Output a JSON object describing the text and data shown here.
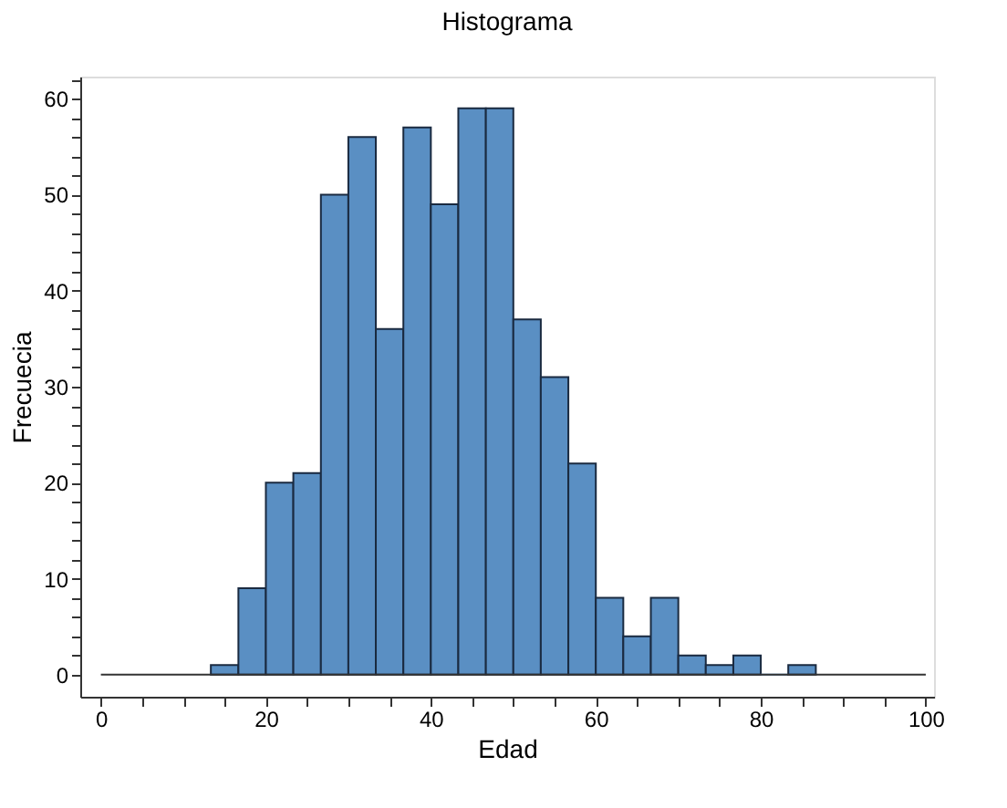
{
  "chart_data": {
    "type": "histogram",
    "title": "Histograma",
    "xlabel": "Edad",
    "ylabel": "Frecuecia",
    "bins": [
      13.33,
      16.67,
      20,
      23.33,
      26.67,
      30,
      33.33,
      36.67,
      40,
      43.33,
      46.67,
      50,
      53.33,
      56.67,
      60,
      63.33,
      66.67,
      70,
      73.33,
      76.67,
      80,
      83.33,
      86.67
    ],
    "values": [
      1,
      9,
      20,
      21,
      50,
      56,
      36,
      57,
      49,
      59,
      59,
      37,
      31,
      22,
      8,
      4,
      8,
      2,
      1,
      2,
      0,
      1
    ],
    "color": "#5a8fc3",
    "xlim": [
      -2.5,
      101
    ],
    "ylim": [
      -2.3,
      62.3
    ],
    "xticks": [
      0,
      {
        "value": 5,
        "label": null
      },
      {
        "value": 10,
        "label": null
      },
      {
        "value": 15,
        "label": null
      },
      20,
      {
        "value": 25,
        "label": null
      },
      {
        "value": 30,
        "label": null
      },
      {
        "value": 35,
        "label": null
      },
      40,
      {
        "value": 45,
        "label": null
      },
      {
        "value": 50,
        "label": null
      },
      {
        "value": 55,
        "label": null
      },
      60,
      {
        "value": 65,
        "label": null
      },
      {
        "value": 70,
        "label": null
      },
      {
        "value": 75,
        "label": null
      },
      80,
      {
        "value": 85,
        "label": null
      },
      {
        "value": 90,
        "label": null
      },
      {
        "value": 95,
        "label": null
      },
      100
    ],
    "yticks": [
      0,
      {
        "value": 2,
        "label": null
      },
      {
        "value": 4,
        "label": null
      },
      {
        "value": 6,
        "label": null
      },
      {
        "value": 8,
        "label": null
      },
      10,
      {
        "value": 12,
        "label": null
      },
      {
        "value": 14,
        "label": null
      },
      {
        "value": 16,
        "label": null
      },
      {
        "value": 18,
        "label": null
      },
      20,
      {
        "value": 22,
        "label": null
      },
      {
        "value": 24,
        "label": null
      },
      {
        "value": 26,
        "label": null
      },
      {
        "value": 28,
        "label": null
      },
      30,
      {
        "value": 32,
        "label": null
      },
      {
        "value": 34,
        "label": null
      },
      {
        "value": 36,
        "label": null
      },
      {
        "value": 38,
        "label": null
      },
      40,
      {
        "value": 42,
        "label": null
      },
      {
        "value": 44,
        "label": null
      },
      {
        "value": 46,
        "label": null
      },
      {
        "value": 48,
        "label": null
      },
      50,
      {
        "value": 52,
        "label": null
      },
      {
        "value": 54,
        "label": null
      },
      {
        "value": 56,
        "label": null
      },
      {
        "value": 58,
        "label": null
      },
      60,
      {
        "value": 62,
        "label": null
      }
    ],
    "ref_lines": [
      {
        "axis": "y",
        "value": 0,
        "color": "#333333"
      }
    ],
    "grid": false
  }
}
